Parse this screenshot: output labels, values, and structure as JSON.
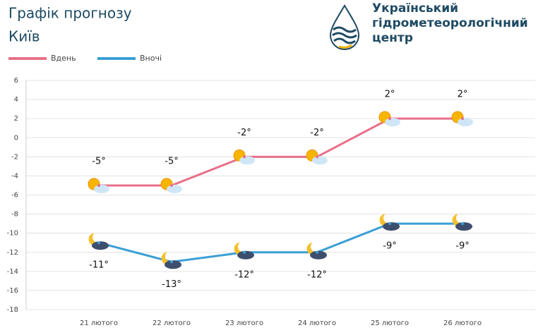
{
  "header": {
    "title": "Графік прогнозу",
    "city": "Київ",
    "org_lines": [
      "Український",
      "гідрометеорологічний",
      "центр"
    ]
  },
  "chart_data": {
    "type": "line",
    "categories": [
      "21 лютого",
      "22 лютого",
      "23 лютого",
      "24 лютого",
      "25 лютого",
      "26 лютого"
    ],
    "series": [
      {
        "name": "Вдень",
        "color": "#e8708a",
        "values": [
          -5,
          -5,
          -2,
          -2,
          2,
          2
        ],
        "value_labels": [
          "-5°",
          "-5°",
          "-2°",
          "-2°",
          "2°",
          "2°"
        ]
      },
      {
        "name": "Вночі",
        "color": "#3a9fd6",
        "values": [
          -11,
          -13,
          -12,
          -12,
          -9,
          -9
        ],
        "value_labels": [
          "-11°",
          "-13°",
          "-12°",
          "-12°",
          "-9°",
          "-9°"
        ]
      }
    ],
    "ylim": [
      -18,
      6
    ],
    "yticks": [
      6,
      4,
      2,
      0,
      -2,
      -4,
      -6,
      -8,
      -10,
      -12,
      -14,
      -16,
      -18
    ],
    "grid": true
  }
}
